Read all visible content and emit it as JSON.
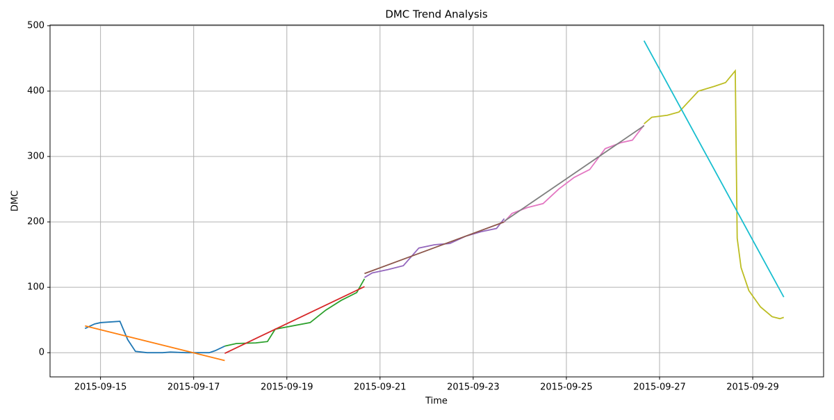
{
  "chart_data": {
    "type": "line",
    "title": "DMC Trend Analysis",
    "x_label": "Time",
    "y_label": "DMC",
    "xlim": [
      "2015-09-13T22:00",
      "2015-09-30T12:30"
    ],
    "xticks": [
      "2015-09-15",
      "2015-09-17",
      "2015-09-19",
      "2015-09-21",
      "2015-09-23",
      "2015-09-25",
      "2015-09-27",
      "2015-09-29"
    ],
    "ylim": [
      -37,
      501
    ],
    "yticks": [
      0,
      100,
      200,
      300,
      400,
      500
    ],
    "grid": true,
    "series": [
      {
        "color": "#1f77b4",
        "x": [
          "2015-09-14T16:00",
          "2015-09-14T21:00",
          "2015-09-15T00:00",
          "2015-09-15T10:00",
          "2015-09-15T14:00",
          "2015-09-15T18:00",
          "2015-09-16T00:00",
          "2015-09-16T08:00",
          "2015-09-16T12:00",
          "2015-09-16T20:00",
          "2015-09-17T08:00",
          "2015-09-17T11:00",
          "2015-09-17T16:00"
        ],
        "values": [
          37,
          44,
          46,
          48,
          20,
          2,
          0,
          0,
          1,
          0,
          0,
          3,
          10
        ]
      },
      {
        "color": "#ff7f0e",
        "x": [
          "2015-09-14T16:00",
          "2015-09-17T16:00"
        ],
        "values": [
          41,
          -12
        ]
      },
      {
        "color": "#2ca02c",
        "x": [
          "2015-09-17T16:00",
          "2015-09-17T22:00",
          "2015-09-18T08:00",
          "2015-09-18T14:00",
          "2015-09-18T18:00",
          "2015-09-19T12:00",
          "2015-09-19T20:00",
          "2015-09-20T04:00",
          "2015-09-20T12:00",
          "2015-09-20T16:00"
        ],
        "values": [
          10,
          14,
          15,
          17,
          36,
          46,
          65,
          80,
          92,
          113
        ]
      },
      {
        "color": "#d62728",
        "x": [
          "2015-09-17T16:00",
          "2015-09-20T16:00"
        ],
        "values": [
          -1,
          101
        ]
      },
      {
        "color": "#9467bd",
        "x": [
          "2015-09-20T16:00",
          "2015-09-20T20:00",
          "2015-09-21T04:00",
          "2015-09-21T12:00",
          "2015-09-21T20:00",
          "2015-09-22T04:00",
          "2015-09-22T12:00",
          "2015-09-22T20:00",
          "2015-09-23T04:00",
          "2015-09-23T12:00",
          "2015-09-23T16:00"
        ],
        "values": [
          115,
          122,
          127,
          133,
          160,
          165,
          167,
          178,
          185,
          190,
          205
        ]
      },
      {
        "color": "#8c564b",
        "x": [
          "2015-09-20T16:00",
          "2015-09-23T16:00"
        ],
        "values": [
          121,
          200
        ]
      },
      {
        "color": "#e377c2",
        "x": [
          "2015-09-23T16:00",
          "2015-09-23T20:00",
          "2015-09-24T04:00",
          "2015-09-24T12:00",
          "2015-09-24T20:00",
          "2015-09-25T04:00",
          "2015-09-25T12:00",
          "2015-09-25T20:00",
          "2015-09-26T04:00",
          "2015-09-26T10:00",
          "2015-09-26T16:00"
        ],
        "values": [
          200,
          213,
          222,
          228,
          250,
          268,
          280,
          312,
          321,
          325,
          348
        ]
      },
      {
        "color": "#7f7f7f",
        "x": [
          "2015-09-23T16:00",
          "2015-09-26T16:00"
        ],
        "values": [
          201,
          347
        ]
      },
      {
        "color": "#bcbd22",
        "x": [
          "2015-09-26T16:00",
          "2015-09-26T20:00",
          "2015-09-27T04:00",
          "2015-09-27T10:00",
          "2015-09-27T20:00",
          "2015-09-28T04:00",
          "2015-09-28T10:00",
          "2015-09-28T15:00",
          "2015-09-28T16:00",
          "2015-09-28T18:00",
          "2015-09-28T22:00",
          "2015-09-29T04:00",
          "2015-09-29T10:00",
          "2015-09-29T14:00",
          "2015-09-29T16:00"
        ],
        "values": [
          350,
          360,
          363,
          368,
          400,
          407,
          413,
          431,
          175,
          130,
          95,
          70,
          55,
          52,
          54
        ]
      },
      {
        "color": "#17becf",
        "x": [
          "2015-09-26T16:00",
          "2015-09-29T16:00"
        ],
        "values": [
          477,
          85
        ]
      }
    ]
  }
}
